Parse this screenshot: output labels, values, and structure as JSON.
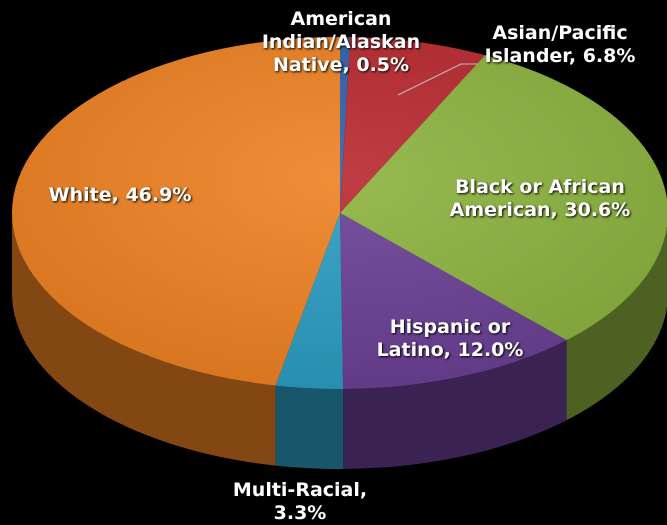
{
  "chart_data": {
    "type": "pie",
    "style": "3d",
    "title": "",
    "slices": [
      {
        "label": "American Indian/Alaskan Native",
        "value": 0.5,
        "display": "American\nIndian/Alaskan\nNative, 0.5%",
        "color": "#2f5fa8"
      },
      {
        "label": "Asian/Pacific Islander",
        "value": 6.8,
        "display": "Asian/Pacific\nIslander, 6.8%",
        "color": "#b8282e"
      },
      {
        "label": "Black or African American",
        "value": 30.6,
        "display": "Black or African\nAmerican, 30.6%",
        "color": "#8cb23e"
      },
      {
        "label": "Hispanic or Latino",
        "value": 12.0,
        "display": "Hispanic or\nLatino, 12.0%",
        "color": "#6a3f95"
      },
      {
        "label": "Multi-Racial",
        "value": 3.3,
        "display": "Multi-Racial,\n3.3%",
        "color": "#2a9cc2"
      },
      {
        "label": "White",
        "value": 46.9,
        "display": "White, 46.9%",
        "color": "#ee8122"
      }
    ]
  }
}
